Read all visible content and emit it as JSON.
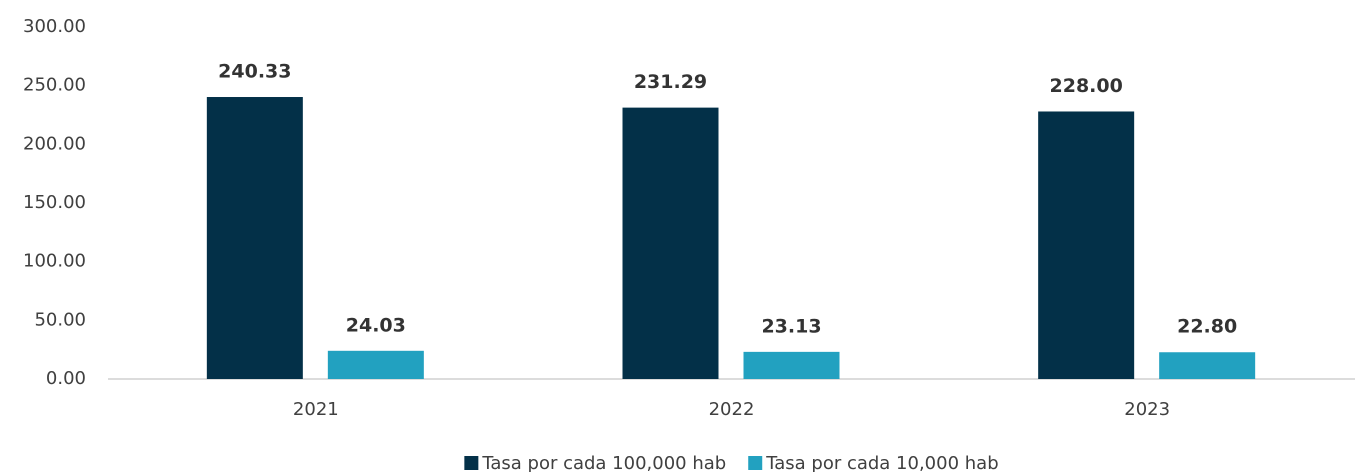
{
  "chart_data": {
    "type": "bar",
    "categories": [
      "2021",
      "2022",
      "2023"
    ],
    "series": [
      {
        "name": "Tasa por cada 100,000 hab",
        "color": "#033048",
        "values": [
          240.33,
          231.29,
          228.0
        ],
        "value_labels": [
          "240.33",
          "231.29",
          "228.00"
        ]
      },
      {
        "name": "Tasa por cada 10,000 hab",
        "color": "#22a1c0",
        "values": [
          24.03,
          23.13,
          22.8
        ],
        "value_labels": [
          "24.03",
          "23.13",
          "22.80"
        ]
      }
    ],
    "ylim": [
      0,
      300
    ],
    "yticks": [
      {
        "value": 0,
        "label": "0.00"
      },
      {
        "value": 50,
        "label": "50.00"
      },
      {
        "value": 100,
        "label": "100.00"
      },
      {
        "value": 150,
        "label": "150.00"
      },
      {
        "value": 200,
        "label": "200.00"
      },
      {
        "value": 250,
        "label": "250.00"
      },
      {
        "value": 300,
        "label": "300.00"
      }
    ],
    "grid": false,
    "legend": "bottom"
  }
}
